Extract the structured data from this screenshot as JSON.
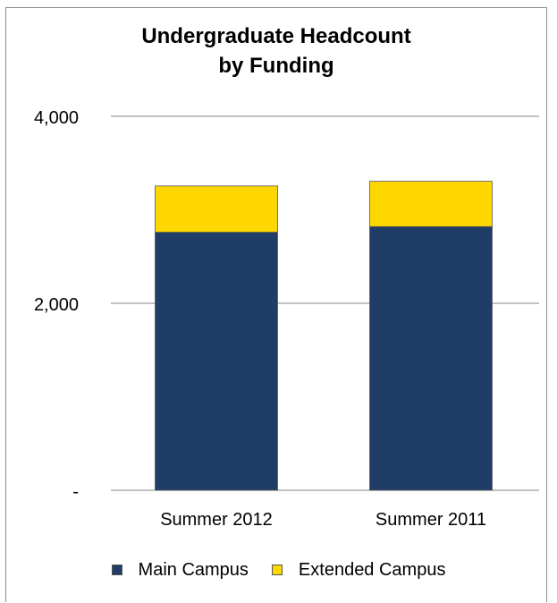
{
  "chart_data": {
    "type": "bar",
    "stacked": true,
    "title": [
      "Undergraduate Headcount",
      "by Funding"
    ],
    "categories": [
      "Summer 2012",
      "Summer 2011"
    ],
    "series": [
      {
        "name": "Main Campus",
        "values": [
          2760,
          2820
        ],
        "color": "#1f3d66"
      },
      {
        "name": "Extended Campus",
        "values": [
          495,
          485
        ],
        "color": "#ffd700"
      }
    ],
    "ylim": [
      0,
      4000
    ],
    "y_ticks": [
      {
        "value": 0,
        "label": "-"
      },
      {
        "value": 2000,
        "label": "2,000"
      },
      {
        "value": 4000,
        "label": "4,000"
      }
    ],
    "grid": true,
    "legend_position": "bottom"
  }
}
